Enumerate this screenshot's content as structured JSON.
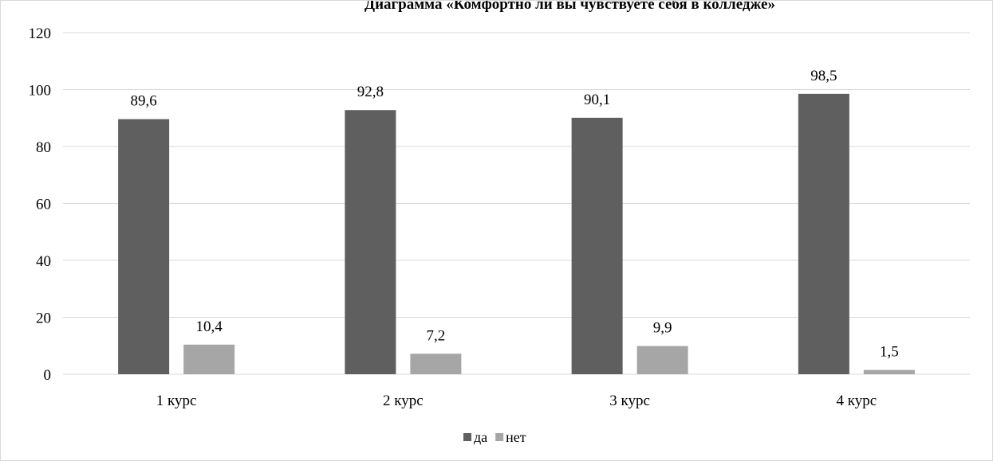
{
  "chart_data": {
    "type": "bar",
    "title": "Диаграмма «Комфортно ли вы чувствуете себя в колледже»",
    "categories": [
      "1 курс",
      "2 курс",
      "3 курс",
      "4 курс"
    ],
    "series": [
      {
        "name": "да",
        "values": [
          89.6,
          92.8,
          90.1,
          98.5
        ],
        "labels": [
          "89,6",
          "92,8",
          "90,1",
          "98,5"
        ],
        "color": "#5f5f5f"
      },
      {
        "name": "нет",
        "values": [
          10.4,
          7.2,
          9.9,
          1.5
        ],
        "labels": [
          "10,4",
          "7,2",
          "9,9",
          "1,5"
        ],
        "color": "#a6a6a6"
      }
    ],
    "ylim": [
      0,
      120
    ],
    "yticks": [
      "0",
      "20",
      "40",
      "60",
      "80",
      "100",
      "120"
    ],
    "grid": true,
    "legend": "bottom"
  }
}
